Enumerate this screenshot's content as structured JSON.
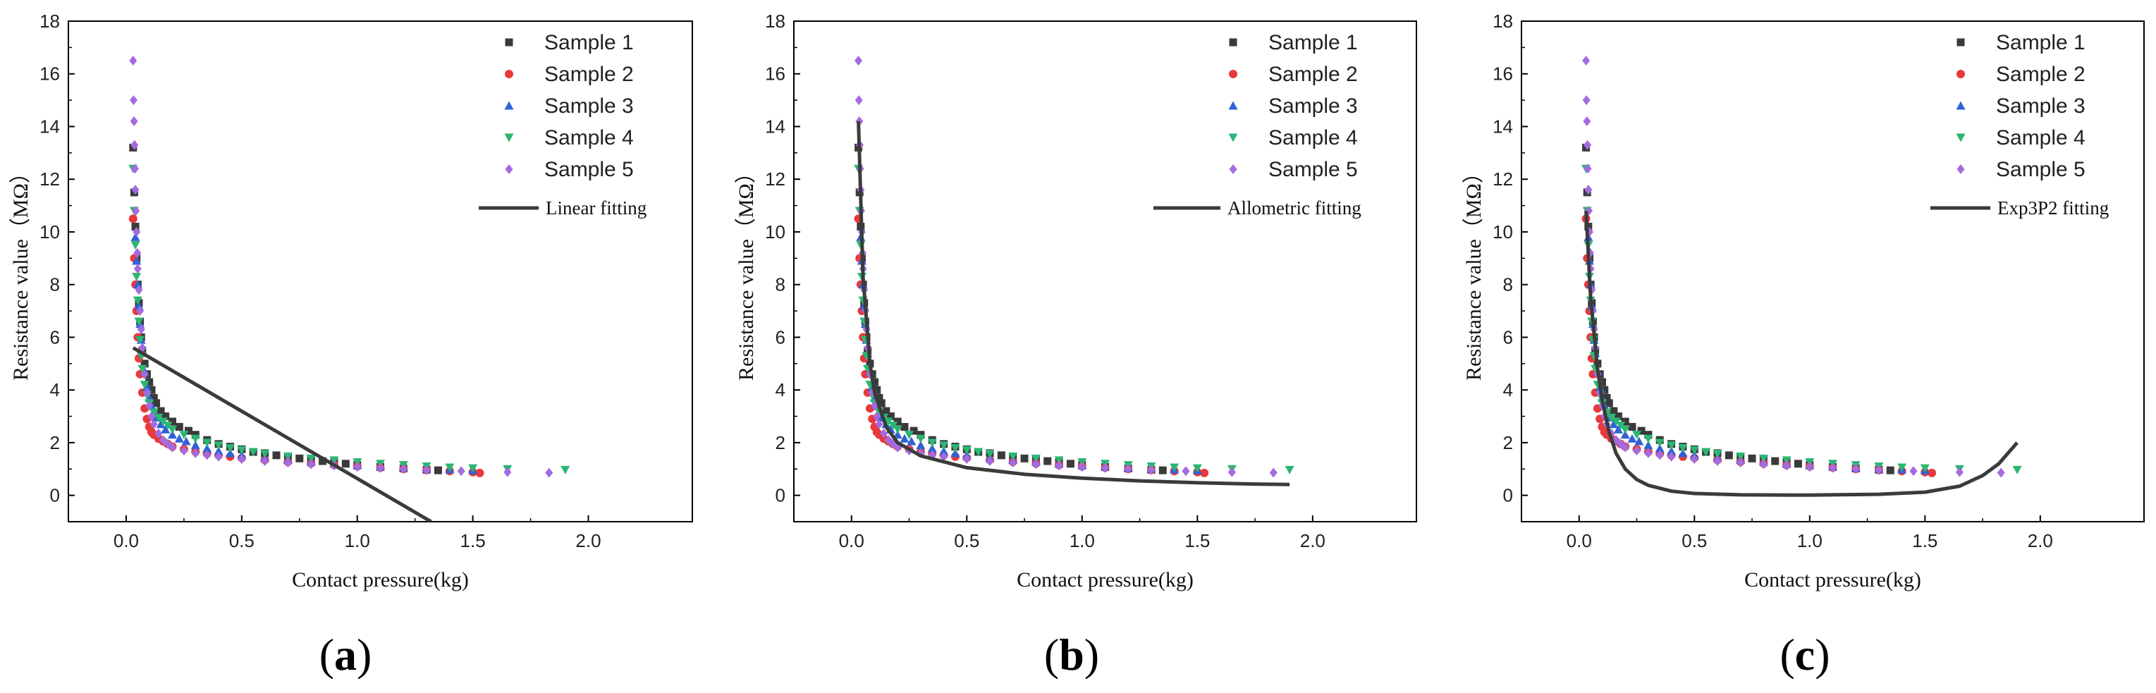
{
  "figure": {
    "description_free": true
  },
  "chart_data": [
    {
      "type": "scatter",
      "panel_label": "a",
      "xlabel": "Contact pressure(kg)",
      "ylabel": "Resistance value（MΩ）",
      "xlim": [
        -0.25,
        2.45
      ],
      "ylim": [
        -1,
        18
      ],
      "xticks": [
        0.0,
        0.5,
        1.0,
        1.5,
        2.0
      ],
      "xtick_labels": [
        "0.0",
        "0.5",
        "1.0",
        "1.5",
        "2.0"
      ],
      "yticks": [
        0,
        2,
        4,
        6,
        8,
        10,
        12,
        14,
        16,
        18
      ],
      "ytick_labels": [
        "0",
        "2",
        "4",
        "6",
        "8",
        "10",
        "12",
        "14",
        "16",
        "18"
      ],
      "legend_position": "top-right",
      "fit": {
        "name": "Linear fitting",
        "kind": "linear",
        "x": [
          0.03,
          1.32
        ],
        "y": [
          5.6,
          -1.0
        ]
      }
    },
    {
      "type": "scatter",
      "panel_label": "b",
      "xlabel": "Contact pressure(kg)",
      "ylabel": "Resistance value（MΩ）",
      "xlim": [
        -0.25,
        2.45
      ],
      "ylim": [
        -1,
        18
      ],
      "xticks": [
        0.0,
        0.5,
        1.0,
        1.5,
        2.0
      ],
      "xtick_labels": [
        "0.0",
        "0.5",
        "1.0",
        "1.5",
        "2.0"
      ],
      "yticks": [
        0,
        2,
        4,
        6,
        8,
        10,
        12,
        14,
        16,
        18
      ],
      "ytick_labels": [
        "0",
        "2",
        "4",
        "6",
        "8",
        "10",
        "12",
        "14",
        "16",
        "18"
      ],
      "legend_position": "top-right",
      "fit": {
        "name": "Allometric fitting",
        "kind": "curve",
        "x": [
          0.03,
          0.05,
          0.08,
          0.1,
          0.15,
          0.2,
          0.3,
          0.5,
          0.75,
          1.0,
          1.25,
          1.5,
          1.75,
          1.9
        ],
        "y": [
          14.2,
          8.3,
          5.0,
          3.9,
          2.6,
          2.0,
          1.5,
          1.05,
          0.8,
          0.65,
          0.55,
          0.48,
          0.43,
          0.41
        ]
      }
    },
    {
      "type": "scatter",
      "panel_label": "c",
      "xlabel": "Contact pressure(kg)",
      "ylabel": "Resistance value（MΩ）",
      "xlim": [
        -0.25,
        2.45
      ],
      "ylim": [
        -1,
        18
      ],
      "xticks": [
        0.0,
        0.5,
        1.0,
        1.5,
        2.0
      ],
      "xtick_labels": [
        "0.0",
        "0.5",
        "1.0",
        "1.5",
        "2.0"
      ],
      "yticks": [
        0,
        2,
        4,
        6,
        8,
        10,
        12,
        14,
        16,
        18
      ],
      "ytick_labels": [
        "0",
        "2",
        "4",
        "6",
        "8",
        "10",
        "12",
        "14",
        "16",
        "18"
      ],
      "legend_position": "top-right",
      "fit": {
        "name": "Exp3P2 fitting",
        "kind": "curve",
        "x": [
          0.03,
          0.05,
          0.08,
          0.1,
          0.13,
          0.16,
          0.2,
          0.25,
          0.3,
          0.4,
          0.5,
          0.7,
          1.0,
          1.3,
          1.5,
          1.65,
          1.75,
          1.82,
          1.9
        ],
        "y": [
          10.8,
          7.5,
          4.8,
          3.6,
          2.4,
          1.6,
          1.0,
          0.6,
          0.38,
          0.16,
          0.07,
          0.02,
          0.01,
          0.04,
          0.12,
          0.35,
          0.75,
          1.2,
          2.0
        ]
      }
    }
  ],
  "samples": [
    {
      "name": "Sample 1",
      "color": "#3a3a3a",
      "marker": "square",
      "x": [
        0.03,
        0.035,
        0.04,
        0.045,
        0.05,
        0.055,
        0.06,
        0.065,
        0.07,
        0.08,
        0.09,
        0.1,
        0.11,
        0.12,
        0.13,
        0.15,
        0.17,
        0.2,
        0.23,
        0.27,
        0.3,
        0.35,
        0.4,
        0.45,
        0.5,
        0.55,
        0.6,
        0.65,
        0.7,
        0.75,
        0.8,
        0.85,
        0.9,
        0.95,
        1.0,
        1.1,
        1.2,
        1.3,
        1.35
      ],
      "y": [
        13.2,
        11.5,
        10.2,
        9.0,
        8.0,
        7.3,
        6.6,
        6.0,
        5.5,
        5.0,
        4.6,
        4.3,
        4.0,
        3.7,
        3.5,
        3.2,
        3.0,
        2.8,
        2.6,
        2.45,
        2.3,
        2.1,
        1.95,
        1.85,
        1.75,
        1.65,
        1.6,
        1.52,
        1.45,
        1.4,
        1.35,
        1.3,
        1.25,
        1.2,
        1.15,
        1.08,
        1.02,
        0.97,
        0.95
      ]
    },
    {
      "name": "Sample 2",
      "color": "#e8393b",
      "marker": "circle",
      "x": [
        0.03,
        0.035,
        0.04,
        0.045,
        0.05,
        0.055,
        0.06,
        0.07,
        0.08,
        0.09,
        0.1,
        0.11,
        0.12,
        0.14,
        0.16,
        0.18,
        0.2,
        0.25,
        0.3,
        0.35,
        0.4,
        0.45,
        0.5,
        0.6,
        0.7,
        0.8,
        0.9,
        1.0,
        1.1,
        1.2,
        1.3,
        1.4,
        1.5,
        1.53
      ],
      "y": [
        10.5,
        9.0,
        8.0,
        7.0,
        6.0,
        5.2,
        4.6,
        3.9,
        3.3,
        2.9,
        2.6,
        2.4,
        2.3,
        2.15,
        2.05,
        1.95,
        1.85,
        1.75,
        1.65,
        1.58,
        1.52,
        1.47,
        1.42,
        1.34,
        1.27,
        1.21,
        1.15,
        1.1,
        1.05,
        1.0,
        0.96,
        0.92,
        0.88,
        0.85
      ]
    },
    {
      "name": "Sample 3",
      "color": "#2f62d6",
      "marker": "triangle-up",
      "x": [
        0.04,
        0.045,
        0.05,
        0.055,
        0.06,
        0.065,
        0.07,
        0.08,
        0.09,
        0.1,
        0.11,
        0.12,
        0.13,
        0.15,
        0.17,
        0.2,
        0.23,
        0.26,
        0.3,
        0.35,
        0.4,
        0.45,
        0.5,
        0.6,
        0.7,
        0.8,
        0.9,
        1.0,
        1.1,
        1.2,
        1.3,
        1.4,
        1.5
      ],
      "y": [
        9.8,
        8.9,
        8.0,
        7.2,
        6.5,
        5.9,
        5.4,
        4.7,
        4.1,
        3.7,
        3.4,
        3.15,
        2.95,
        2.7,
        2.5,
        2.3,
        2.15,
        2.05,
        1.9,
        1.78,
        1.68,
        1.6,
        1.52,
        1.42,
        1.34,
        1.27,
        1.2,
        1.14,
        1.09,
        1.05,
        1.01,
        0.98,
        0.95
      ]
    },
    {
      "name": "Sample 4",
      "color": "#2bb673",
      "marker": "triangle-down",
      "x": [
        0.03,
        0.035,
        0.04,
        0.045,
        0.05,
        0.055,
        0.06,
        0.065,
        0.07,
        0.08,
        0.09,
        0.1,
        0.12,
        0.14,
        0.16,
        0.18,
        0.2,
        0.25,
        0.3,
        0.35,
        0.4,
        0.45,
        0.5,
        0.55,
        0.6,
        0.7,
        0.8,
        0.9,
        1.0,
        1.1,
        1.2,
        1.3,
        1.4,
        1.5,
        1.65,
        1.9
      ],
      "y": [
        12.4,
        10.8,
        9.5,
        8.3,
        7.4,
        6.6,
        5.9,
        5.3,
        4.8,
        4.2,
        3.8,
        3.5,
        3.15,
        2.95,
        2.8,
        2.65,
        2.5,
        2.3,
        2.15,
        2.0,
        1.9,
        1.8,
        1.72,
        1.65,
        1.58,
        1.48,
        1.4,
        1.33,
        1.26,
        1.2,
        1.15,
        1.1,
        1.06,
        1.03,
        1.0,
        0.97
      ]
    },
    {
      "name": "Sample 5",
      "color": "#a46be0",
      "marker": "diamond",
      "x": [
        0.03,
        0.032,
        0.034,
        0.036,
        0.038,
        0.04,
        0.042,
        0.045,
        0.048,
        0.05,
        0.055,
        0.06,
        0.065,
        0.07,
        0.08,
        0.09,
        0.1,
        0.11,
        0.12,
        0.14,
        0.16,
        0.18,
        0.2,
        0.25,
        0.3,
        0.35,
        0.4,
        0.5,
        0.6,
        0.7,
        0.8,
        0.9,
        1.0,
        1.1,
        1.2,
        1.3,
        1.45,
        1.65,
        1.83
      ],
      "y": [
        16.5,
        15.0,
        14.2,
        13.3,
        12.4,
        11.6,
        10.8,
        10.0,
        9.2,
        8.6,
        7.8,
        7.0,
        6.3,
        5.6,
        4.6,
        3.9,
        3.4,
        3.0,
        2.7,
        2.35,
        2.1,
        1.95,
        1.82,
        1.7,
        1.6,
        1.53,
        1.47,
        1.38,
        1.3,
        1.24,
        1.18,
        1.13,
        1.08,
        1.04,
        1.0,
        0.96,
        0.92,
        0.88,
        0.86
      ]
    }
  ],
  "legend_fit_label_a": "Linear fitting",
  "legend_fit_label_b": "Allometric fitting",
  "legend_fit_label_c": "Exp3P2 fitting"
}
